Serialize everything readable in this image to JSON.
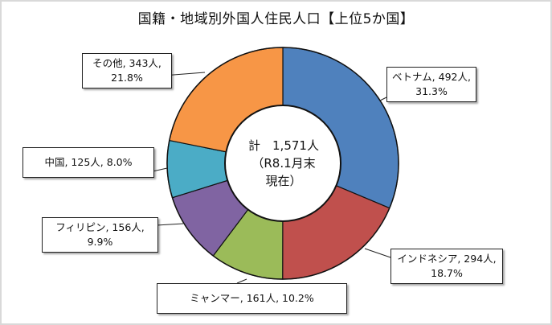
{
  "chart_data": {
    "type": "pie",
    "subtype": "donut",
    "title": "国籍・地域別外国人住民人口【上位5か国】",
    "center_label": {
      "line1": "計　1,571人",
      "line2": "（R8.1月末",
      "line3": "現在）"
    },
    "total": 1571,
    "unit": "人",
    "categories": [
      "ベトナム",
      "インドネシア",
      "ミャンマー",
      "フィリピン",
      "中国",
      "その他"
    ],
    "values": [
      492,
      294,
      161,
      156,
      125,
      343
    ],
    "percentages": [
      31.3,
      18.7,
      10.2,
      9.9,
      8.0,
      21.8
    ],
    "colors": [
      "#4f81bd",
      "#c0504d",
      "#9bbb59",
      "#8064a2",
      "#4bacc6",
      "#f79646"
    ],
    "start_angle_deg": 0,
    "direction": "clockwise",
    "legend": "none (data callouts)"
  },
  "labels": {
    "vietnam": {
      "line1": "ベトナム, 492人,",
      "line2": "31.3%"
    },
    "indonesia": {
      "line1": "インドネシア, 294人,",
      "line2": "18.7%"
    },
    "myanmar": {
      "line1": "ミャンマー, 161人, 10.2%"
    },
    "philippines": {
      "line1": "フィリピン, 156人,",
      "line2": "9.9%"
    },
    "china": {
      "line1": "中国, 125人, 8.0%"
    },
    "other": {
      "line1": "その他, 343人,",
      "line2": "21.8%"
    }
  }
}
